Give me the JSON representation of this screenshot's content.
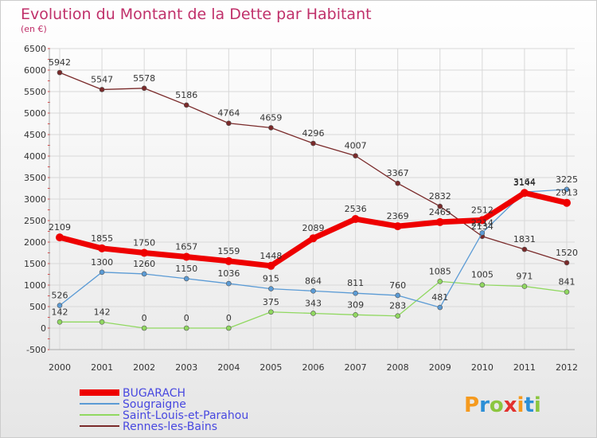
{
  "title": "Evolution du Montant de la Dette par Habitant",
  "subtitle": "(en €)",
  "brand": "Proxiti",
  "colors": {
    "title": "#c0306a",
    "legend_text": "#4848e0",
    "bugarach": "#ee0000",
    "sougraigne": "#5b9bd5",
    "saint_louis": "#90d860",
    "rennes": "#7a2a2a",
    "grid": "#d8d8d8",
    "bg_top": "#ffffff",
    "bg_bottom": "#e8e8e8"
  },
  "chart_data": {
    "type": "line",
    "title": "Evolution du Montant de la Dette par Habitant",
    "subtitle": "(en €)",
    "xlabel": "",
    "ylabel": "",
    "ylim": [
      -500,
      6500
    ],
    "yticks": [
      -500,
      0,
      500,
      1000,
      1500,
      2000,
      2500,
      3000,
      3500,
      4000,
      4500,
      5000,
      5500,
      6000,
      6500
    ],
    "x": [
      "2000",
      "2001",
      "2002",
      "2003",
      "2004",
      "2005",
      "2006",
      "2007",
      "2008",
      "2009",
      "2010",
      "2011",
      "2012"
    ],
    "grid": true,
    "legend_position": "bottom-left",
    "series": [
      {
        "name": "BUGARACH",
        "values": [
          2109,
          1855,
          1750,
          1657,
          1559,
          1448,
          2089,
          2536,
          2369,
          2465,
          2512,
          3144,
          2913
        ]
      },
      {
        "name": "Sougraigne",
        "values": [
          526,
          1300,
          1260,
          1150,
          1036,
          915,
          864,
          811,
          760,
          481,
          2214,
          3164,
          3225
        ]
      },
      {
        "name": "Saint-Louis-et-Parahou",
        "values": [
          142,
          142,
          0,
          0,
          0,
          375,
          343,
          309,
          283,
          1085,
          1005,
          971,
          841
        ]
      },
      {
        "name": "Rennes-les-Bains",
        "values": [
          5942,
          5547,
          5578,
          5186,
          4764,
          4659,
          4296,
          4007,
          3367,
          2832,
          2134,
          1831,
          1520
        ]
      }
    ]
  }
}
